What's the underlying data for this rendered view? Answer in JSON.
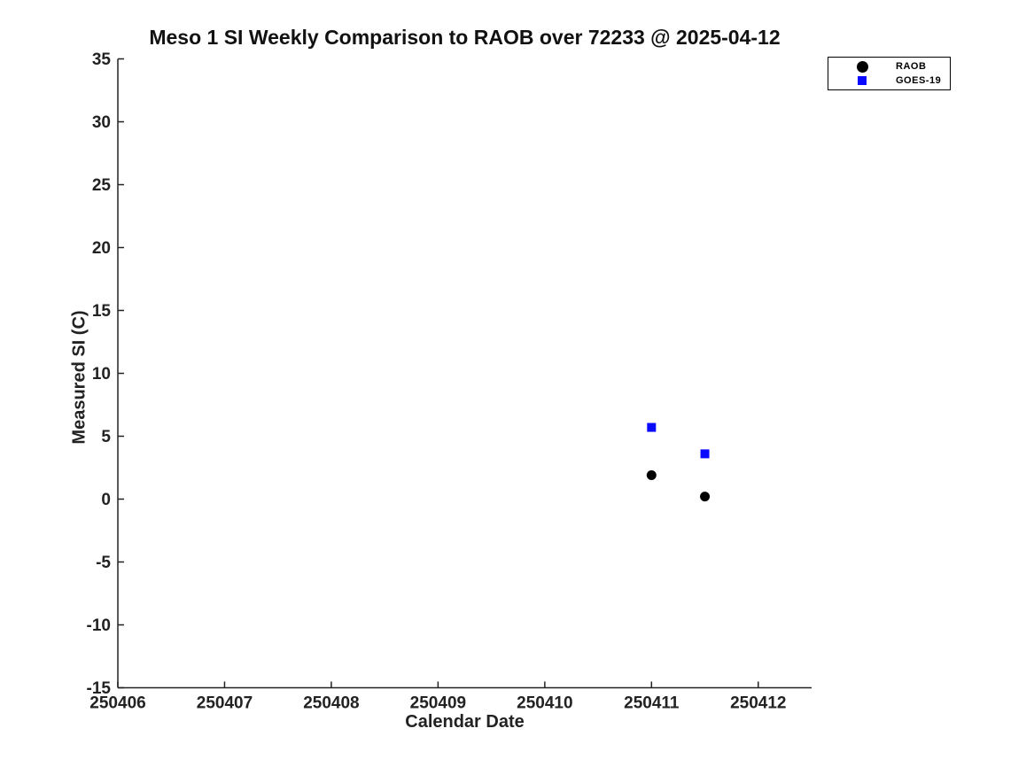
{
  "chart_data": {
    "type": "scatter",
    "title": "Meso 1 SI Weekly Comparison to RAOB over 72233 @ 2025-04-12",
    "xlabel": "Calendar Date",
    "ylabel": "Measured SI (C)",
    "xlim": [
      250406,
      250412.5
    ],
    "ylim": [
      -15,
      35
    ],
    "xticks": [
      250406,
      250407,
      250408,
      250409,
      250410,
      250411,
      250412
    ],
    "yticks": [
      -15,
      -10,
      -5,
      0,
      5,
      10,
      15,
      20,
      25,
      30,
      35
    ],
    "grid": false,
    "legend_position": "top-right",
    "background_color": "#ffffff",
    "axis_color": "#222222",
    "series": [
      {
        "name": "RAOB",
        "marker": "circle",
        "color": "#000000",
        "points": [
          {
            "x": 250411.0,
            "y": 1.9
          },
          {
            "x": 250411.5,
            "y": 0.2
          }
        ]
      },
      {
        "name": "GOES-19",
        "marker": "square",
        "color": "#0a0aff",
        "points": [
          {
            "x": 250411.0,
            "y": 5.7
          },
          {
            "x": 250411.5,
            "y": 3.6
          }
        ]
      }
    ]
  }
}
